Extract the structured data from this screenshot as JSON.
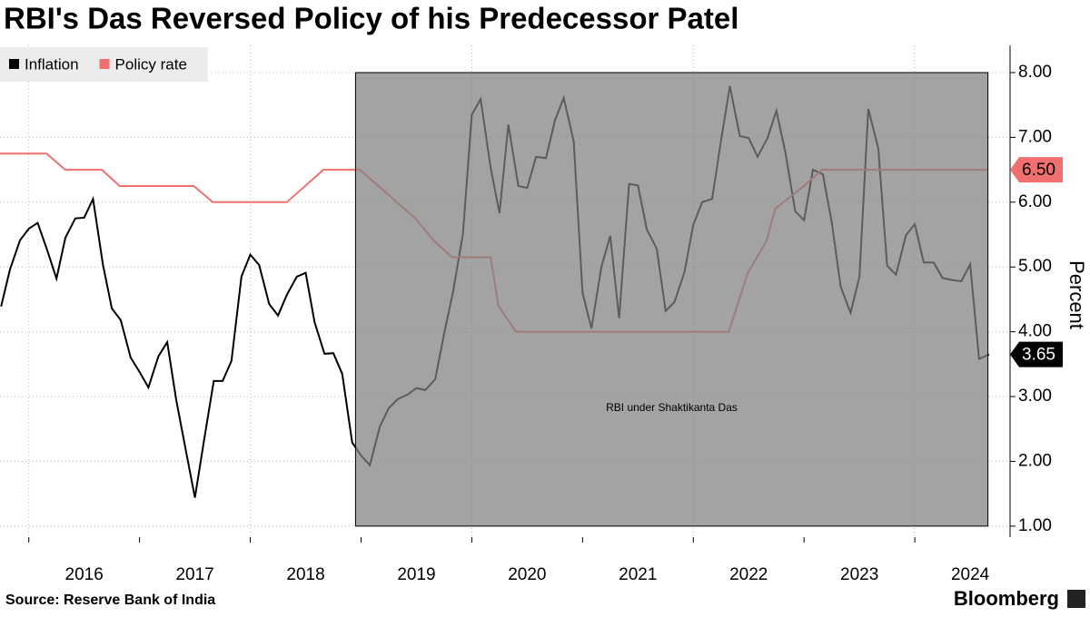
{
  "chart_data": {
    "type": "line",
    "title": "RBI's Das Reversed Policy of his Predecessor Patel",
    "y_label": "Percent",
    "source": "Source: Reserve Bank of India",
    "brand": "Bloomberg",
    "legend": "top-left",
    "grid": true,
    "xlim": [
      2015.74,
      2024.86
    ],
    "xticks": [
      2016,
      2017,
      2018,
      2019,
      2020,
      2021,
      2022,
      2023,
      2024
    ],
    "ylim": [
      0.83,
      8.42
    ],
    "yticks": [
      {
        "value": 1,
        "label": "1.00"
      },
      {
        "value": 2,
        "label": "2.00"
      },
      {
        "value": 3,
        "label": "3.00"
      },
      {
        "value": 4,
        "label": "4.00"
      },
      {
        "value": 5,
        "label": "5.00"
      },
      {
        "value": 6,
        "label": "6.00"
      },
      {
        "value": 7,
        "label": "7.00"
      },
      {
        "value": 8,
        "label": "8.00"
      }
    ],
    "shaded_region": {
      "label": "RBI under Shaktikanta Das",
      "x": [
        2018.95,
        2024.66
      ],
      "y": [
        1,
        8
      ],
      "color": "#808080"
    },
    "series": [
      {
        "name": "Inflation",
        "color": "#000000",
        "last_label": "3.65",
        "x": [
          2015.75,
          2015.83,
          2015.92,
          2016.0,
          2016.08,
          2016.17,
          2016.25,
          2016.33,
          2016.42,
          2016.5,
          2016.58,
          2016.67,
          2016.75,
          2016.83,
          2016.92,
          2017.0,
          2017.08,
          2017.17,
          2017.25,
          2017.33,
          2017.42,
          2017.5,
          2017.58,
          2017.67,
          2017.75,
          2017.83,
          2017.92,
          2018.0,
          2018.08,
          2018.17,
          2018.25,
          2018.33,
          2018.42,
          2018.5,
          2018.58,
          2018.67,
          2018.75,
          2018.83,
          2018.92,
          2019.0,
          2019.08,
          2019.17,
          2019.25,
          2019.33,
          2019.42,
          2019.5,
          2019.58,
          2019.67,
          2019.75,
          2019.83,
          2019.92,
          2020.0,
          2020.08,
          2020.17,
          2020.25,
          2020.33,
          2020.42,
          2020.5,
          2020.58,
          2020.67,
          2020.75,
          2020.83,
          2020.92,
          2021.0,
          2021.08,
          2021.17,
          2021.25,
          2021.33,
          2021.42,
          2021.5,
          2021.58,
          2021.67,
          2021.75,
          2021.83,
          2021.92,
          2022.0,
          2022.08,
          2022.17,
          2022.25,
          2022.33,
          2022.42,
          2022.5,
          2022.58,
          2022.67,
          2022.75,
          2022.83,
          2022.92,
          2023.0,
          2023.08,
          2023.17,
          2023.25,
          2023.33,
          2023.42,
          2023.5,
          2023.58,
          2023.67,
          2023.75,
          2023.83,
          2023.92,
          2024.0,
          2024.08,
          2024.17,
          2024.25,
          2024.33,
          2024.42,
          2024.5,
          2024.58,
          2024.67
        ],
        "values": [
          4.39,
          4.96,
          5.41,
          5.59,
          5.68,
          5.24,
          4.82,
          5.45,
          5.75,
          5.76,
          6.05,
          5.03,
          4.36,
          4.18,
          3.6,
          3.38,
          3.14,
          3.62,
          3.84,
          2.96,
          2.15,
          1.44,
          2.3,
          3.24,
          3.24,
          3.55,
          4.85,
          5.19,
          5.03,
          4.43,
          4.25,
          4.57,
          4.85,
          4.91,
          4.15,
          3.66,
          3.67,
          3.35,
          2.29,
          2.09,
          1.94,
          2.54,
          2.82,
          2.96,
          3.03,
          3.13,
          3.1,
          3.27,
          3.97,
          4.61,
          5.51,
          7.35,
          7.59,
          6.53,
          5.83,
          7.2,
          6.25,
          6.22,
          6.7,
          6.68,
          7.26,
          7.61,
          6.94,
          4.6,
          4.05,
          5.0,
          5.48,
          4.21,
          6.28,
          6.26,
          5.58,
          5.28,
          4.32,
          4.46,
          4.92,
          5.65,
          6.0,
          6.05,
          6.95,
          7.79,
          7.02,
          6.99,
          6.7,
          6.99,
          7.41,
          6.78,
          5.86,
          5.72,
          6.5,
          6.43,
          5.69,
          4.7,
          4.29,
          4.85,
          7.44,
          6.83,
          5.02,
          4.88,
          5.49,
          5.66,
          5.07,
          5.07,
          4.83,
          4.8,
          4.78,
          5.04,
          3.58,
          3.65
        ]
      },
      {
        "name": "Policy rate",
        "color": "#f07070",
        "last_label": "6.50",
        "x": [
          2015.74,
          2016.16,
          2016.33,
          2016.66,
          2016.82,
          2017.49,
          2017.66,
          2018.33,
          2018.66,
          2018.99,
          2019.49,
          2019.66,
          2019.82,
          2020.17,
          2020.24,
          2020.4,
          2022.32,
          2022.49,
          2022.66,
          2022.74,
          2023.0,
          2023.16,
          2024.66
        ],
        "values": [
          6.75,
          6.75,
          6.5,
          6.5,
          6.25,
          6.25,
          6,
          6,
          6.5,
          6.5,
          5.75,
          5.4,
          5.15,
          5.15,
          4.4,
          4,
          4,
          4.9,
          5.4,
          5.9,
          6.25,
          6.5,
          6.5
        ]
      }
    ]
  }
}
